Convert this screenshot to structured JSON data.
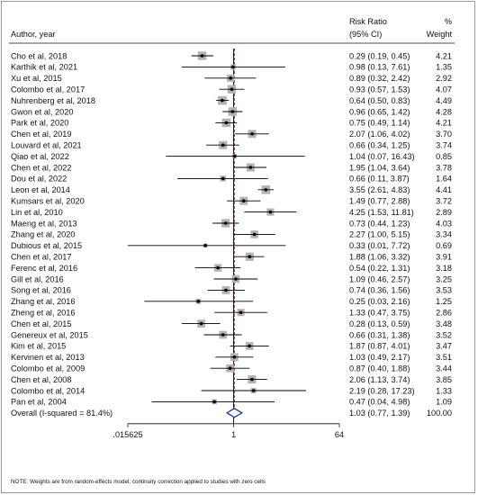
{
  "chart_data": {
    "type": "forest",
    "header": {
      "study": "Author, year",
      "effect": "Risk Ratio",
      "ci": "(95% CI)",
      "weight_symbol": "%",
      "weight": "Weight"
    },
    "x_scale": "log",
    "x_ticks": [
      {
        "value": 0.015625,
        "label": ".015625"
      },
      {
        "value": 1,
        "label": "1"
      },
      {
        "value": 64,
        "label": "64"
      }
    ],
    "xlim": [
      0.015625,
      64
    ],
    "reference_line": 1,
    "studies": [
      {
        "label": "Cho et al, 2018",
        "rr": 0.29,
        "lo": 0.19,
        "hi": 0.45,
        "ci_text": "0.29 (0.19, 0.45)",
        "weight": "4.21"
      },
      {
        "label": "Karthik et al, 2021",
        "rr": 0.98,
        "lo": 0.13,
        "hi": 7.61,
        "ci_text": "0.98 (0.13, 7.61)",
        "weight": "1.35"
      },
      {
        "label": "Xu et al, 2015",
        "rr": 0.89,
        "lo": 0.32,
        "hi": 2.42,
        "ci_text": "0.89 (0.32, 2.42)",
        "weight": "2.92"
      },
      {
        "label": "Colombo et al, 2017",
        "rr": 0.93,
        "lo": 0.57,
        "hi": 1.53,
        "ci_text": "0.93 (0.57, 1.53)",
        "weight": "4.07"
      },
      {
        "label": "Nuhrenberg et al, 2018",
        "rr": 0.64,
        "lo": 0.5,
        "hi": 0.83,
        "ci_text": "0.64 (0.50, 0.83)",
        "weight": "4.49"
      },
      {
        "label": "Gwon et al, 2020",
        "rr": 0.96,
        "lo": 0.65,
        "hi": 1.42,
        "ci_text": "0.96 (0.65, 1.42)",
        "weight": "4.28"
      },
      {
        "label": "Park et al, 2020",
        "rr": 0.75,
        "lo": 0.49,
        "hi": 1.14,
        "ci_text": "0.75 (0.49, 1.14)",
        "weight": "4.21"
      },
      {
        "label": "Chen et al, 2019",
        "rr": 2.07,
        "lo": 1.06,
        "hi": 4.02,
        "ci_text": "2.07 (1.06, 4.02)",
        "weight": "3.70"
      },
      {
        "label": "Louvard et al, 2021",
        "rr": 0.66,
        "lo": 0.34,
        "hi": 1.25,
        "ci_text": "0.66 (0.34, 1.25)",
        "weight": "3.74"
      },
      {
        "label": "Qiao et al, 2022",
        "rr": 1.04,
        "lo": 0.07,
        "hi": 16.43,
        "ci_text": "1.04 (0.07, 16.43)",
        "weight": "0.85"
      },
      {
        "label": "Chen et al, 2022",
        "rr": 1.95,
        "lo": 1.04,
        "hi": 3.64,
        "ci_text": "1.95 (1.04, 3.64)",
        "weight": "3.78"
      },
      {
        "label": "Dou et al, 2022",
        "rr": 0.66,
        "lo": 0.11,
        "hi": 3.87,
        "ci_text": "0.66 (0.11, 3.87)",
        "weight": "1.64"
      },
      {
        "label": "Leon et al, 2014",
        "rr": 3.55,
        "lo": 2.61,
        "hi": 4.83,
        "ci_text": "3.55 (2.61, 4.83)",
        "weight": "4.41"
      },
      {
        "label": "Kumsars et al, 2020",
        "rr": 1.49,
        "lo": 0.77,
        "hi": 2.88,
        "ci_text": "1.49 (0.77, 2.88)",
        "weight": "3.72"
      },
      {
        "label": "Lin et al, 2010",
        "rr": 4.25,
        "lo": 1.53,
        "hi": 11.81,
        "ci_text": "4.25 (1.53, 11.81)",
        "weight": "2.89"
      },
      {
        "label": "Maeng et al, 2013",
        "rr": 0.73,
        "lo": 0.44,
        "hi": 1.23,
        "ci_text": "0.73 (0.44, 1.23)",
        "weight": "4.03"
      },
      {
        "label": "Zhang et al, 2020",
        "rr": 2.27,
        "lo": 1.0,
        "hi": 5.15,
        "ci_text": "2.27 (1.00, 5.15)",
        "weight": "3.34"
      },
      {
        "label": "Dubious et al, 2015",
        "rr": 0.33,
        "lo": 0.01,
        "hi": 7.72,
        "ci_text": "0.33 (0.01, 7.72)",
        "weight": "0.69"
      },
      {
        "label": "Chen et al, 2017",
        "rr": 1.88,
        "lo": 1.06,
        "hi": 3.32,
        "ci_text": "1.88 (1.06, 3.32)",
        "weight": "3.91"
      },
      {
        "label": "Ferenc et al, 2016",
        "rr": 0.54,
        "lo": 0.22,
        "hi": 1.31,
        "ci_text": "0.54 (0.22, 1.31)",
        "weight": "3.18"
      },
      {
        "label": "Gill et al, 2016",
        "rr": 1.09,
        "lo": 0.46,
        "hi": 2.57,
        "ci_text": "1.09 (0.46, 2.57)",
        "weight": "3.25"
      },
      {
        "label": "Song et al, 2016",
        "rr": 0.74,
        "lo": 0.36,
        "hi": 1.56,
        "ci_text": "0.74 (0.36, 1.56)",
        "weight": "3.53"
      },
      {
        "label": "Zhang et al, 2016",
        "rr": 0.25,
        "lo": 0.03,
        "hi": 2.16,
        "ci_text": "0.25 (0.03, 2.16)",
        "weight": "1.25"
      },
      {
        "label": "Zheng et al, 2016",
        "rr": 1.33,
        "lo": 0.47,
        "hi": 3.75,
        "ci_text": "1.33 (0.47, 3.75)",
        "weight": "2.86"
      },
      {
        "label": "Chen et al, 2015",
        "rr": 0.28,
        "lo": 0.13,
        "hi": 0.59,
        "ci_text": "0.28 (0.13, 0.59)",
        "weight": "3.48"
      },
      {
        "label": "Genereux et al, 2015",
        "rr": 0.66,
        "lo": 0.31,
        "hi": 1.38,
        "ci_text": "0.66 (0.31, 1.38)",
        "weight": "3.52"
      },
      {
        "label": "Kim et al, 2015",
        "rr": 1.87,
        "lo": 0.87,
        "hi": 4.01,
        "ci_text": "1.87 (0.87, 4.01)",
        "weight": "3.47"
      },
      {
        "label": "Kervinen et  al, 2013",
        "rr": 1.03,
        "lo": 0.49,
        "hi": 2.17,
        "ci_text": "1.03 (0.49, 2.17)",
        "weight": "3.51"
      },
      {
        "label": "Colombo et al, 2009",
        "rr": 0.87,
        "lo": 0.4,
        "hi": 1.88,
        "ci_text": "0.87 (0.40, 1.88)",
        "weight": "3.44"
      },
      {
        "label": "Chen et al, 2008",
        "rr": 2.06,
        "lo": 1.13,
        "hi": 3.74,
        "ci_text": "2.06 (1.13, 3.74)",
        "weight": "3.85"
      },
      {
        "label": "Colombo et al, 2014",
        "rr": 2.19,
        "lo": 0.28,
        "hi": 17.23,
        "ci_text": "2.19 (0.28, 17.23)",
        "weight": "1.33"
      },
      {
        "label": "Pan et al, 2004",
        "rr": 0.47,
        "lo": 0.04,
        "hi": 4.98,
        "ci_text": "0.47 (0.04, 4.98)",
        "weight": "1.09"
      }
    ],
    "overall": {
      "label": "Overall  (I-squared = 81.4%)",
      "rr": 1.03,
      "lo": 0.77,
      "hi": 1.39,
      "ci_text": "1.03 (0.77, 1.39)",
      "weight": "100.00"
    },
    "note": "NOTE: Weights are from random-effects model; continuity correction applied to studies with zero cells",
    "colors": {
      "text": "#111111",
      "box": "#b3b3b3",
      "ci": "#000000",
      "reference": "#000000",
      "overall_line": "#8b1a1a",
      "diamond": "#1f3a93"
    }
  }
}
